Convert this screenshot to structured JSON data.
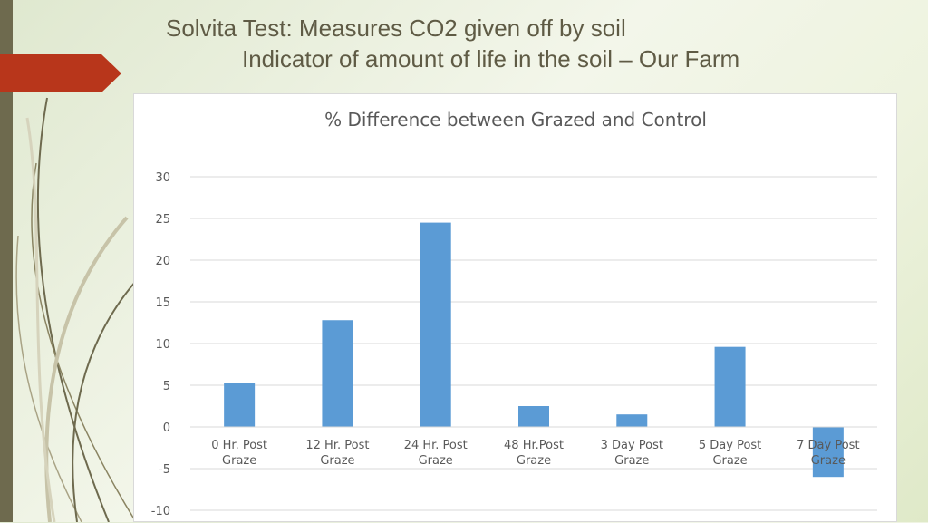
{
  "slide": {
    "title_line1": "Solvita Test:  Measures CO2 given off by soil",
    "title_line2": "Indicator of amount of life in the soil – Our Farm"
  },
  "colors": {
    "bar": "#5b9bd5",
    "accent_tab": "#b8361b",
    "left_bar": "#6e6a4e"
  },
  "chart_data": {
    "type": "bar",
    "title": "% Difference between Grazed and Control",
    "categories": [
      [
        "0 Hr. Post",
        "Graze"
      ],
      [
        "12 Hr. Post",
        "Graze"
      ],
      [
        "24 Hr. Post",
        "Graze"
      ],
      [
        "48 Hr.Post",
        "Graze"
      ],
      [
        "3 Day Post",
        "Graze"
      ],
      [
        "5 Day Post",
        "Graze"
      ],
      [
        "7 Day Post",
        "Graze"
      ]
    ],
    "values": [
      5.3,
      12.8,
      24.5,
      2.5,
      1.5,
      9.6,
      -6.0
    ],
    "xlabel": "",
    "ylabel": "",
    "ylim": [
      -10,
      30
    ],
    "yticks": [
      30,
      25,
      20,
      15,
      10,
      5,
      0,
      -5,
      -10
    ],
    "grid": true,
    "legend": "none"
  }
}
